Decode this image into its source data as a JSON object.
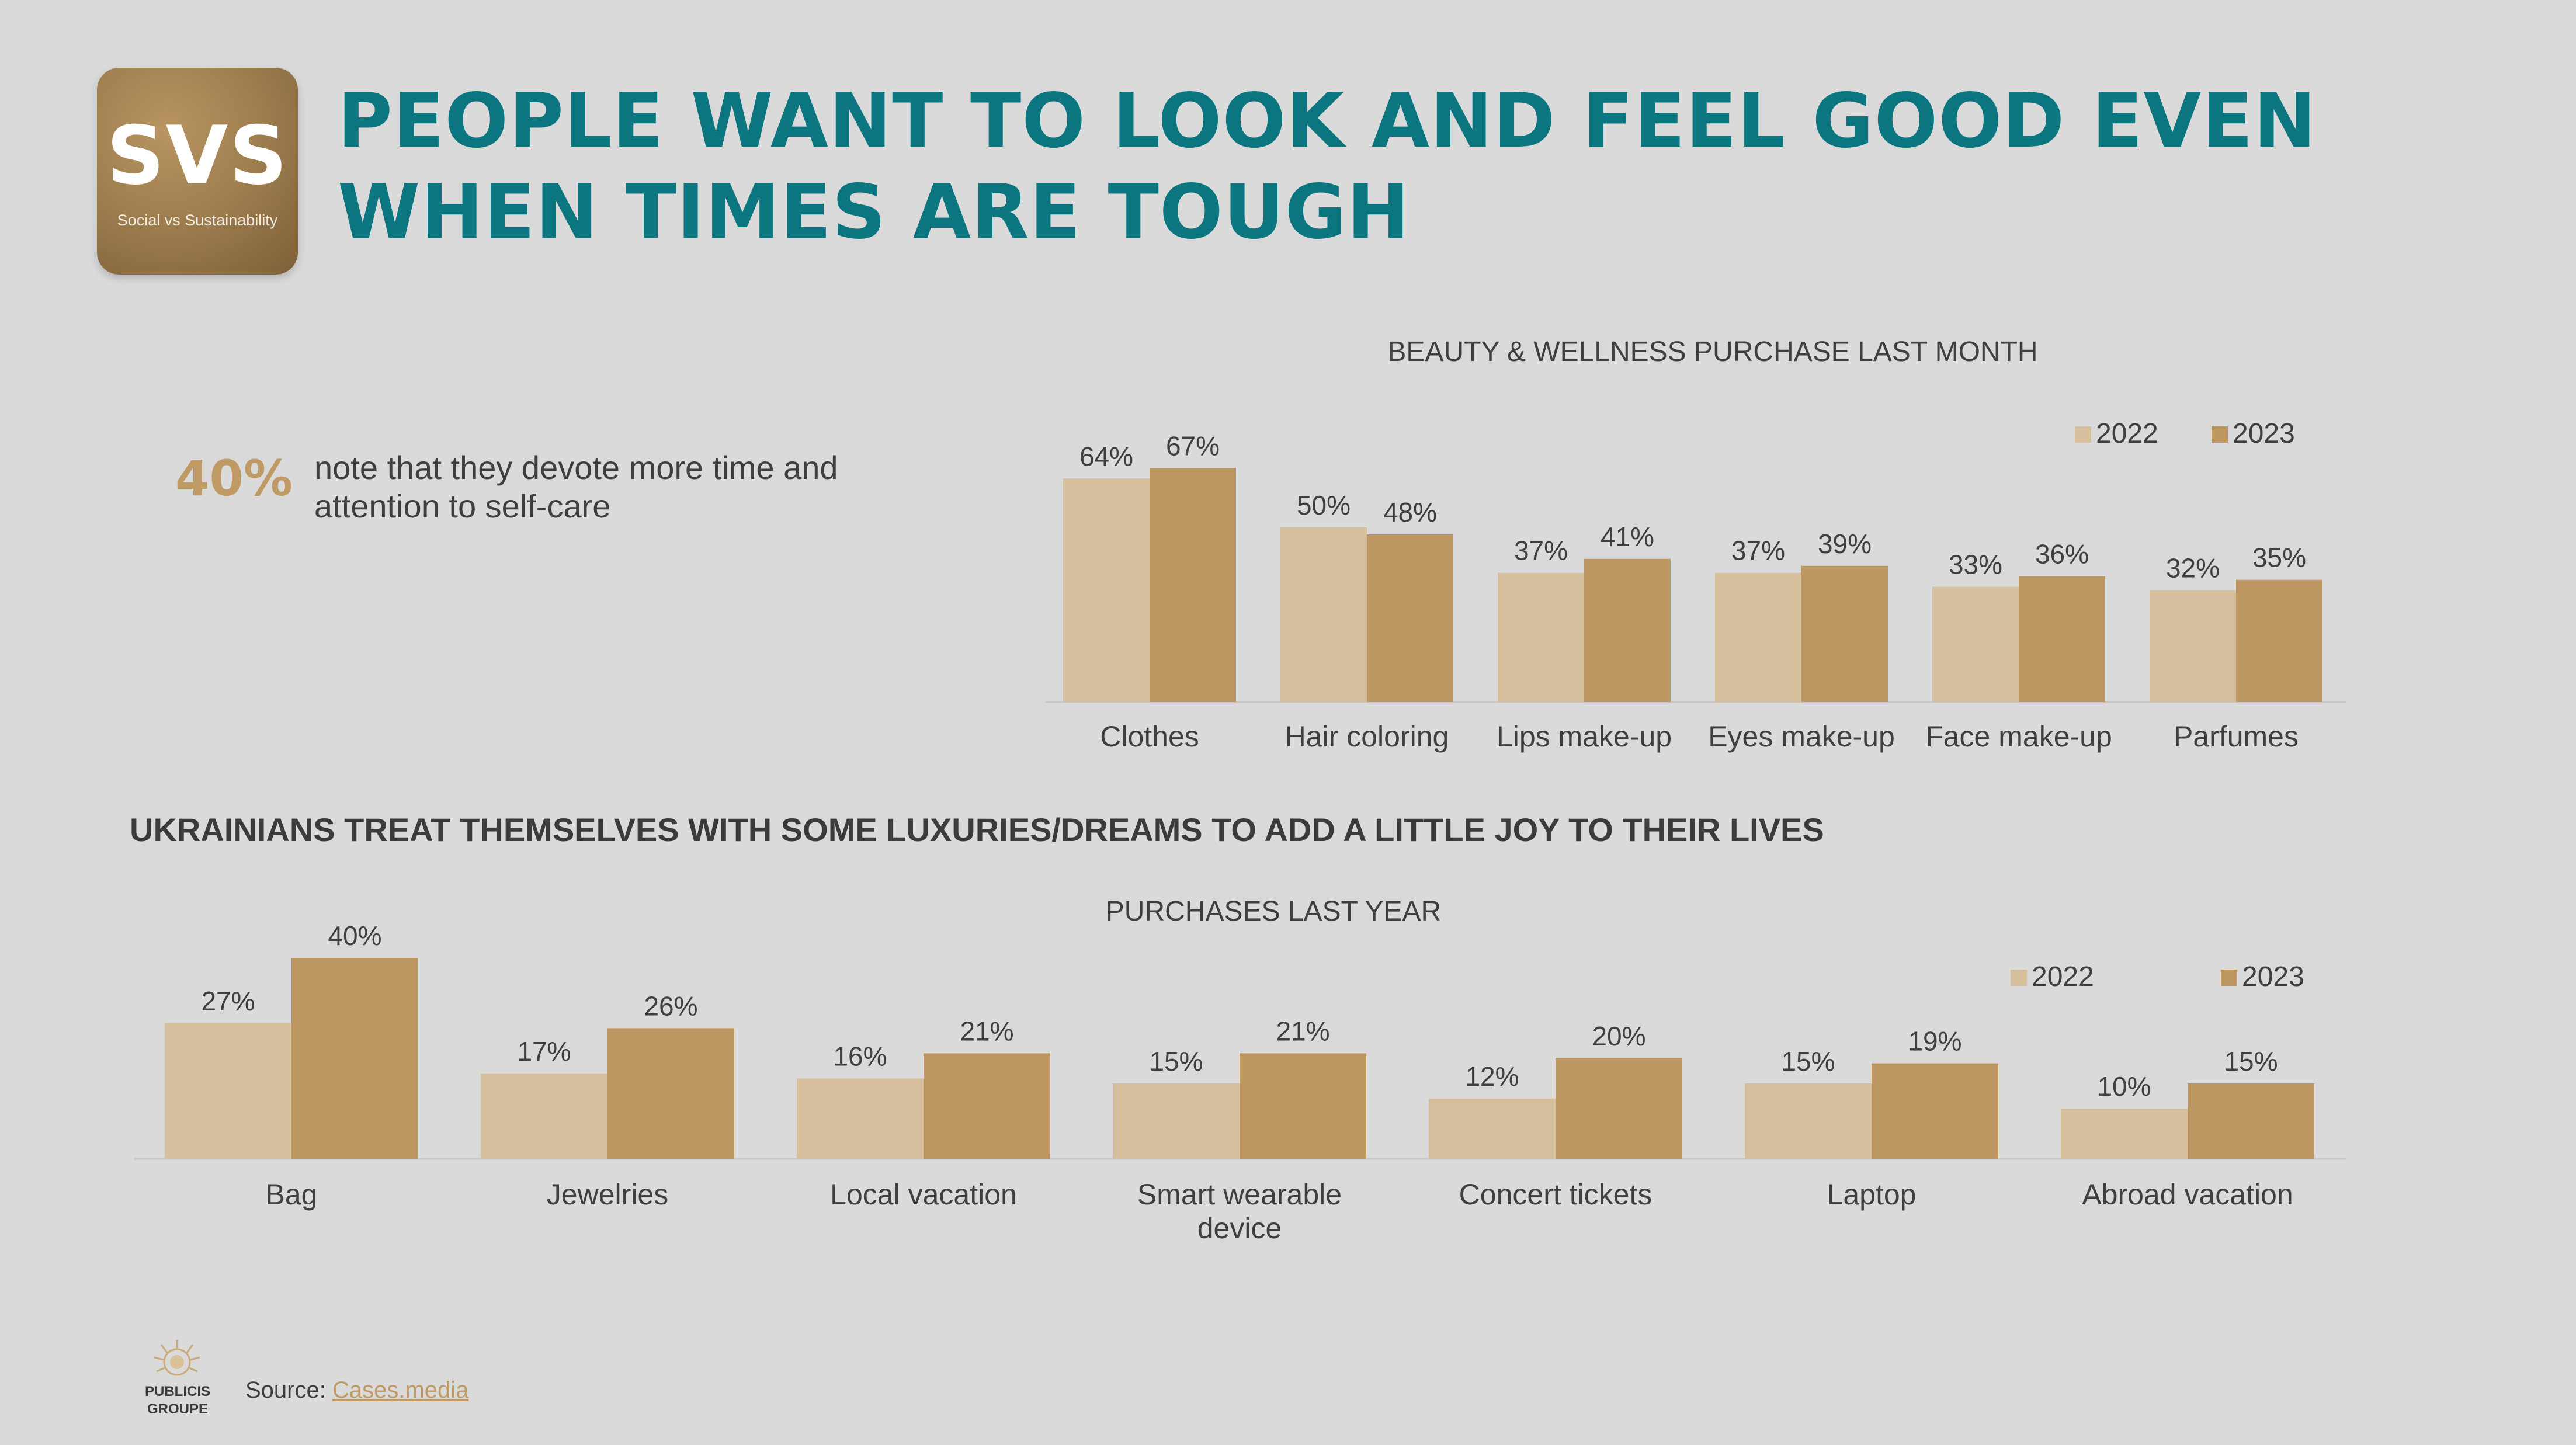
{
  "logo": {
    "main": "SVS",
    "sub": "Social vs Sustainability"
  },
  "title": {
    "line1": "PEOPLE WANT TO LOOK AND FEEL GOOD EVEN",
    "line2": "WHEN TIMES ARE TOUGH"
  },
  "stat": {
    "value": "40%",
    "text": "note that they devote more time and attention to self-care"
  },
  "section_heading": "UKRAINIANS TREAT THEMSELVES WITH SOME LUXURIES/DREAMS TO ADD A LITTLE JOY TO THEIR LIVES",
  "footer": {
    "source_label": "Source:",
    "source_link": "Cases.media",
    "publisher_line1": "PUBLICIS",
    "publisher_line2": "GROUPE"
  },
  "colors": {
    "series_2022": "#d6bf9c",
    "series_2023": "#bd9762",
    "title": "#0b7680",
    "accent": "#bf9a64"
  },
  "chart_data": [
    {
      "type": "bar",
      "title": "BEAUTY & WELLNESS PURCHASE LAST MONTH",
      "categories": [
        "Clothes",
        "Hair coloring",
        "Lips make-up",
        "Eyes make-up",
        "Face make-up",
        "Parfumes"
      ],
      "series": [
        {
          "name": "2022",
          "values": [
            64,
            50,
            37,
            37,
            33,
            32
          ],
          "labels": [
            "64%",
            "50%",
            "37%",
            "37%",
            "33%",
            "32%"
          ]
        },
        {
          "name": "2023",
          "values": [
            67,
            48,
            41,
            39,
            36,
            35
          ],
          "labels": [
            "67%",
            "48%",
            "41%",
            "39%",
            "36%",
            "35%"
          ]
        }
      ],
      "ylim": [
        0,
        100
      ],
      "legend": "top-right",
      "grid": false
    },
    {
      "type": "bar",
      "title": "PURCHASES LAST YEAR",
      "categories": [
        "Bag",
        "Jewelries",
        "Local vacation",
        "Smart wearable device",
        "Concert tickets",
        "Laptop",
        "Abroad vacation"
      ],
      "category_lines": [
        [
          "Bag"
        ],
        [
          "Jewelries"
        ],
        [
          "Local vacation"
        ],
        [
          "Smart wearable",
          "device"
        ],
        [
          "Concert tickets"
        ],
        [
          "Laptop"
        ],
        [
          "Abroad vacation"
        ]
      ],
      "series": [
        {
          "name": "2022",
          "values": [
            27,
            17,
            16,
            15,
            12,
            15,
            10
          ],
          "labels": [
            "27%",
            "17%",
            "16%",
            "15%",
            "12%",
            "15%",
            "10%"
          ]
        },
        {
          "name": "2023",
          "values": [
            40,
            26,
            21,
            21,
            20,
            19,
            15
          ],
          "labels": [
            "40%",
            "26%",
            "21%",
            "21%",
            "20%",
            "19%",
            "15%"
          ]
        }
      ],
      "ylim": [
        0,
        100
      ],
      "legend": "top-right",
      "grid": false
    }
  ]
}
